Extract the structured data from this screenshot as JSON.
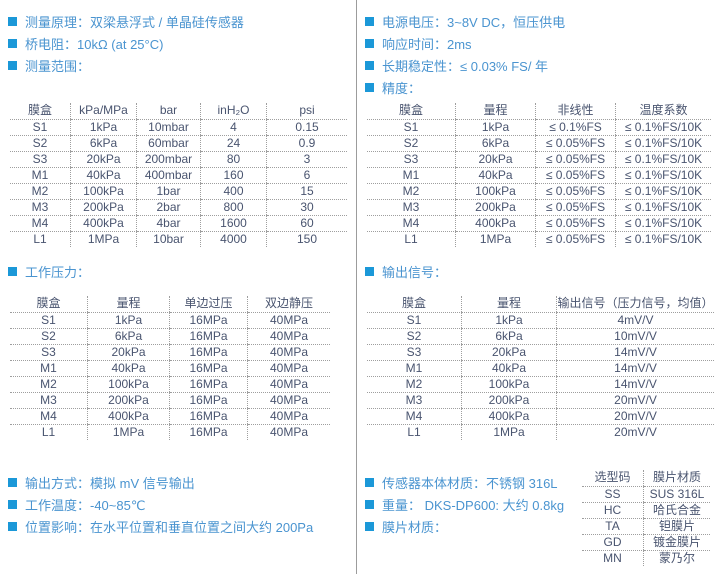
{
  "colors": {
    "bullet": "#1b98d8",
    "section_text": "#4a94d0",
    "table_text": "#49546f",
    "dotted_border": "#9e9e9e",
    "column_divider": "#9c9c9c",
    "background": "#ffffff"
  },
  "left": {
    "specs_top": [
      "测量原理：双梁悬浮式 / 单晶硅传感器",
      "桥电阻：10kΩ (at 25°C)",
      "测量范围："
    ],
    "range_table": {
      "headers": [
        "膜盒",
        "kPa/MPa",
        "bar",
        "inH₂O",
        "psi"
      ],
      "rows": [
        [
          "S1",
          "1kPa",
          "10mbar",
          "4",
          "0.15"
        ],
        [
          "S2",
          "6kPa",
          "60mbar",
          "24",
          "0.9"
        ],
        [
          "S3",
          "20kPa",
          "200mbar",
          "80",
          "3"
        ],
        [
          "M1",
          "40kPa",
          "400mbar",
          "160",
          "6"
        ],
        [
          "M2",
          "100kPa",
          "1bar",
          "400",
          "15"
        ],
        [
          "M3",
          "200kPa",
          "2bar",
          "800",
          "30"
        ],
        [
          "M4",
          "400kPa",
          "4bar",
          "1600",
          "60"
        ],
        [
          "L1",
          "1MPa",
          "10bar",
          "4000",
          "150"
        ]
      ]
    },
    "section_working_pressure": "工作压力：",
    "pressure_table": {
      "headers": [
        "膜盒",
        "量程",
        "单边过压",
        "双边静压"
      ],
      "rows": [
        [
          "S1",
          "1kPa",
          "16MPa",
          "40MPa"
        ],
        [
          "S2",
          "6kPa",
          "16MPa",
          "40MPa"
        ],
        [
          "S3",
          "20kPa",
          "16MPa",
          "40MPa"
        ],
        [
          "M1",
          "40kPa",
          "16MPa",
          "40MPa"
        ],
        [
          "M2",
          "100kPa",
          "16MPa",
          "40MPa"
        ],
        [
          "M3",
          "200kPa",
          "16MPa",
          "40MPa"
        ],
        [
          "M4",
          "400kPa",
          "16MPa",
          "40MPa"
        ],
        [
          "L1",
          "1MPa",
          "16MPa",
          "40MPa"
        ]
      ]
    },
    "specs_bottom": [
      "输出方式：模拟 mV 信号输出",
      "工作温度：-40~85℃",
      "位置影响：在水平位置和垂直位置之间大约 200Pa"
    ]
  },
  "right": {
    "specs_top": [
      "电源电压：3~8V DC，恒压供电",
      "响应时间：2ms",
      "长期稳定性：≤ 0.03% FS/ 年",
      "精度："
    ],
    "accuracy_table": {
      "headers": [
        "膜盒",
        "量程",
        "非线性",
        "温度系数"
      ],
      "rows": [
        [
          "S1",
          "1kPa",
          "≤ 0.1%FS",
          "≤ 0.1%FS/10K"
        ],
        [
          "S2",
          "6kPa",
          "≤ 0.05%FS",
          "≤ 0.1%FS/10K"
        ],
        [
          "S3",
          "20kPa",
          "≤ 0.05%FS",
          "≤ 0.1%FS/10K"
        ],
        [
          "M1",
          "40kPa",
          "≤ 0.05%FS",
          "≤ 0.1%FS/10K"
        ],
        [
          "M2",
          "100kPa",
          "≤ 0.05%FS",
          "≤ 0.1%FS/10K"
        ],
        [
          "M3",
          "200kPa",
          "≤ 0.05%FS",
          "≤ 0.1%FS/10K"
        ],
        [
          "M4",
          "400kPa",
          "≤ 0.05%FS",
          "≤ 0.1%FS/10K"
        ],
        [
          "L1",
          "1MPa",
          "≤ 0.05%FS",
          "≤ 0.1%FS/10K"
        ]
      ]
    },
    "section_output_signal": "输出信号：",
    "output_table": {
      "headers": [
        "膜盒",
        "量程",
        "输出信号（压力信号，均值）"
      ],
      "rows": [
        [
          "S1",
          "1kPa",
          "4mV/V"
        ],
        [
          "S2",
          "6kPa",
          "10mV/V"
        ],
        [
          "S3",
          "20kPa",
          "14mV/V"
        ],
        [
          "M1",
          "40kPa",
          "14mV/V"
        ],
        [
          "M2",
          "100kPa",
          "14mV/V"
        ],
        [
          "M3",
          "200kPa",
          "20mV/V"
        ],
        [
          "M4",
          "400kPa",
          "20mV/V"
        ],
        [
          "L1",
          "1MPa",
          "20mV/V"
        ]
      ]
    },
    "specs_bottom": [
      "传感器本体材质：不锈钢 316L",
      "重量： DKS-DP600: 大约 0.8kg",
      "膜片材质："
    ],
    "material_table": {
      "headers": [
        "选型码",
        "膜片材质"
      ],
      "rows": [
        [
          "SS",
          "SUS 316L"
        ],
        [
          "HC",
          "哈氏合金"
        ],
        [
          "TA",
          "钽膜片"
        ],
        [
          "GD",
          "镀金膜片"
        ],
        [
          "MN",
          "蒙乃尔"
        ]
      ]
    }
  }
}
